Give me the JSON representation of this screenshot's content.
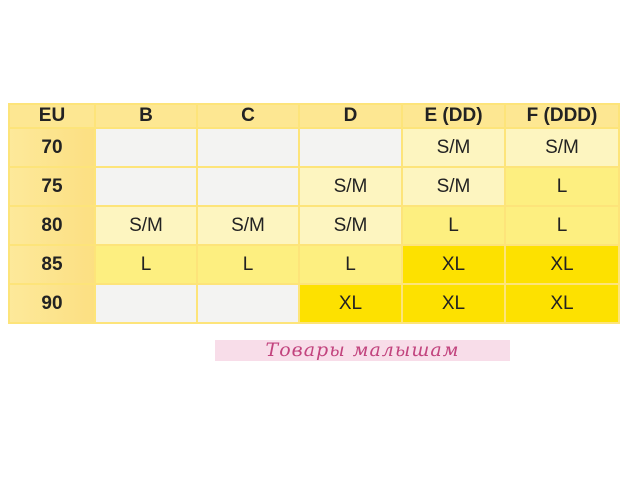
{
  "table": {
    "headers": [
      "EU",
      "B",
      "C",
      "D",
      "E (DD)",
      "F (DDD)"
    ],
    "rows": [
      {
        "eu": "70",
        "cells": [
          "",
          "",
          "",
          "S/M",
          "S/M"
        ]
      },
      {
        "eu": "75",
        "cells": [
          "",
          "",
          "S/M",
          "S/M",
          "L"
        ]
      },
      {
        "eu": "80",
        "cells": [
          "S/M",
          "S/M",
          "S/M",
          "L",
          "L"
        ]
      },
      {
        "eu": "85",
        "cells": [
          "L",
          "L",
          "L",
          "XL",
          "XL"
        ]
      },
      {
        "eu": "90",
        "cells": [
          "",
          "",
          "XL",
          "XL",
          "XL"
        ]
      }
    ]
  },
  "colors": {
    "empty": "#f3f3f2",
    "S/M": "#fdf5c0",
    "L": "#fdef80",
    "XL": "#fde100",
    "header": "#fde792"
  },
  "watermark": "Товары малышам"
}
